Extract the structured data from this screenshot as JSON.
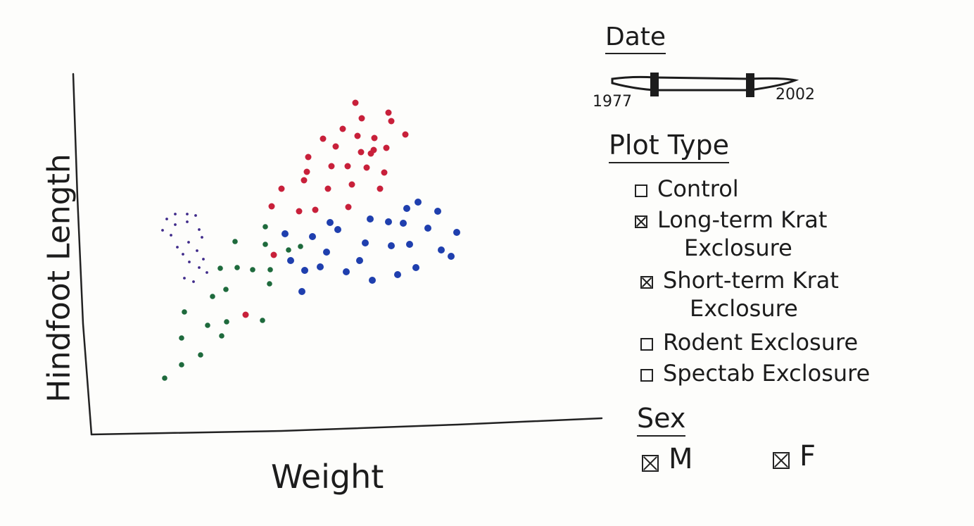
{
  "colors": {
    "ink": "#1c1c1c",
    "red": "#c8203a",
    "blue": "#1f3fae",
    "green": "#1e6a3c",
    "purple": "#3f2a8a"
  },
  "chart": {
    "xlabel": "Weight",
    "ylabel": "Hindfoot Length"
  },
  "date_filter": {
    "heading": "Date",
    "min_label": "1977",
    "max_label": "2002"
  },
  "plot_type": {
    "heading": "Plot Type",
    "options": [
      {
        "label": "Control",
        "checked": false
      },
      {
        "label": "Long-term Krat",
        "label_line2": "Exclosure",
        "checked": true
      },
      {
        "label": "Short-term Krat",
        "label_line2": "Exclosure",
        "checked": true
      },
      {
        "label": "Rodent Exclosure",
        "checked": false
      },
      {
        "label": "Spectab Exclosure",
        "checked": false
      }
    ]
  },
  "sex_filter": {
    "heading": "Sex",
    "options": [
      {
        "label": "M",
        "checked": true
      },
      {
        "label": "F",
        "checked": true
      }
    ]
  }
}
